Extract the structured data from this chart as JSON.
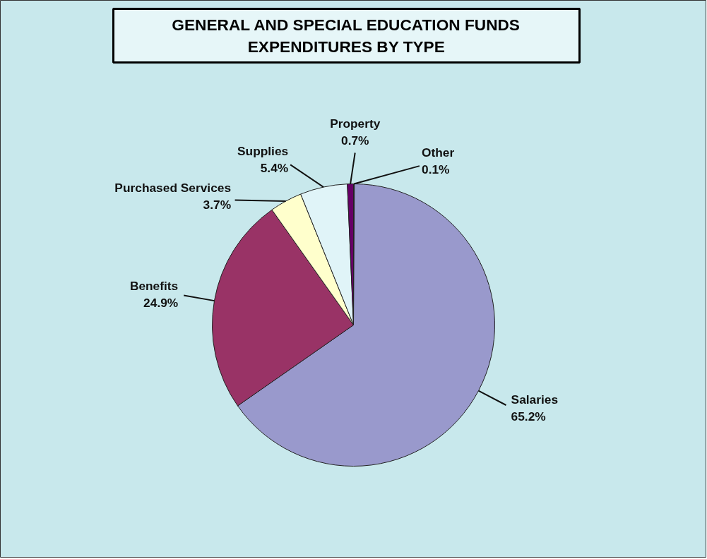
{
  "chart_data": {
    "type": "pie",
    "title": "GENERAL AND SPECIAL EDUCATION FUNDS\nEXPENDITURES BY TYPE",
    "categories": [
      "Other",
      "Salaries",
      "Benefits",
      "Purchased Services",
      "Supplies",
      "Property"
    ],
    "values": [
      0.1,
      65.2,
      24.9,
      3.7,
      5.4,
      0.7
    ],
    "value_labels": [
      "0.1%",
      "65.2%",
      "24.9%",
      "3.7%",
      "5.4%",
      "0.7%"
    ],
    "colors": [
      "#b0b0e0",
      "#9999cc",
      "#993366",
      "#ffffcc",
      "#e0f4f8",
      "#660066"
    ]
  }
}
